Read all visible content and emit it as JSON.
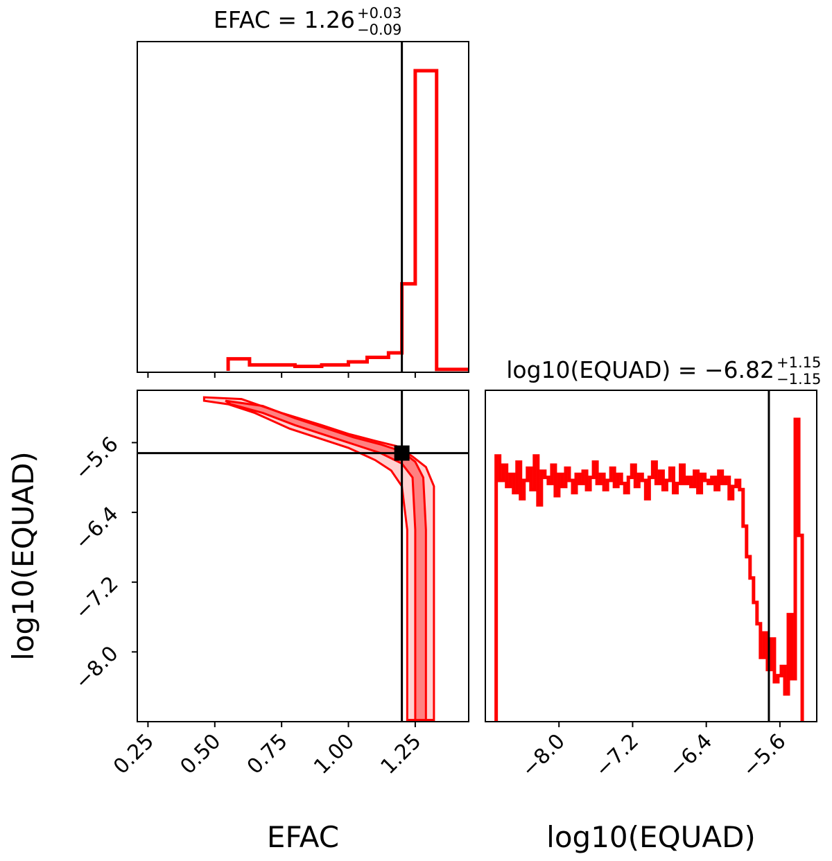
{
  "chart_data": {
    "type": "corner",
    "parameters": [
      {
        "name": "EFAC",
        "title": {
          "main": "EFAC = 1.26",
          "sup": "+0.03",
          "sub": "−0.09"
        },
        "range": [
          0.21,
          1.45
        ],
        "ticks": [
          0.25,
          0.5,
          0.75,
          1.0,
          1.25
        ],
        "tick_labels": [
          "0.25",
          "0.50",
          "0.75",
          "1.00",
          "1.25"
        ],
        "xlabel": "EFAC",
        "truth": 1.2,
        "hist": {
          "edges": [
            0.55,
            0.63,
            0.7,
            0.8,
            0.9,
            1.0,
            1.07,
            1.15,
            1.2,
            1.25,
            1.33,
            1.45
          ],
          "counts": [
            0.04,
            0.02,
            0.02,
            0.015,
            0.02,
            0.03,
            0.045,
            0.06,
            0.29,
            1.0,
            0.005
          ]
        }
      },
      {
        "name": "log10(EQUAD)",
        "title": {
          "main": "log10(EQUAD) = −6.82",
          "sup": "+1.15",
          "sub": "−1.15"
        },
        "range": [
          -8.8,
          -5.2
        ],
        "ticks": [
          -8.0,
          -7.2,
          -6.4,
          -5.6
        ],
        "tick_labels": [
          "−8.0",
          "−7.2",
          "−6.4",
          "−5.6"
        ],
        "xlabel": "log10(EQUAD)",
        "ylabel": "log10(EQUAD)",
        "truth": -5.72,
        "hist": {
          "start": -8.72,
          "end": -5.32,
          "counts": [
            0.0,
            0.88,
            0.8,
            0.85,
            0.78,
            0.82,
            0.76,
            0.86,
            0.74,
            0.8,
            0.84,
            0.77,
            0.88,
            0.72,
            0.83,
            0.81,
            0.79,
            0.85,
            0.75,
            0.82,
            0.78,
            0.84,
            0.8,
            0.76,
            0.82,
            0.79,
            0.83,
            0.77,
            0.81,
            0.86,
            0.79,
            0.82,
            0.77,
            0.8,
            0.84,
            0.78,
            0.82,
            0.79,
            0.76,
            0.81,
            0.85,
            0.78,
            0.82,
            0.8,
            0.74,
            0.81,
            0.86,
            0.79,
            0.83,
            0.77,
            0.8,
            0.84,
            0.76,
            0.79,
            0.85,
            0.79,
            0.81,
            0.78,
            0.83,
            0.76,
            0.82,
            0.8,
            0.79,
            0.81,
            0.77,
            0.83,
            0.79,
            0.81,
            0.74,
            0.78,
            0.8,
            0.77,
            0.65,
            0.55,
            0.48,
            0.4,
            0.33,
            0.22,
            0.3,
            0.18,
            0.28,
            0.14,
            0.16,
            0.19,
            0.1,
            0.36,
            0.15,
            1.0,
            0.62,
            0.0
          ]
        }
      }
    ],
    "joint": {
      "x": "EFAC",
      "y": "log10(EQUAD)",
      "yrange": [
        -8.8,
        -5.0
      ],
      "yticks": [
        -5.6,
        -6.4,
        -7.2,
        -8.0
      ],
      "ytick_labels": [
        "−5.6",
        "−6.4",
        "−7.2",
        "−8.0"
      ],
      "truth_point": [
        1.2,
        -5.72
      ],
      "contour_outer": [
        [
          0.46,
          -5.08
        ],
        [
          0.6,
          -5.1
        ],
        [
          0.75,
          -5.26
        ],
        [
          0.9,
          -5.4
        ],
        [
          1.0,
          -5.5
        ],
        [
          1.1,
          -5.58
        ],
        [
          1.18,
          -5.64
        ],
        [
          1.24,
          -5.76
        ],
        [
          1.29,
          -5.88
        ],
        [
          1.32,
          -6.1
        ],
        [
          1.32,
          -6.6
        ],
        [
          1.32,
          -7.4
        ],
        [
          1.32,
          -8.2
        ],
        [
          1.32,
          -8.78
        ],
        [
          1.22,
          -8.78
        ],
        [
          1.22,
          -8.2
        ],
        [
          1.22,
          -7.4
        ],
        [
          1.22,
          -6.6
        ],
        [
          1.2,
          -6.1
        ],
        [
          1.16,
          -5.92
        ],
        [
          1.1,
          -5.8
        ],
        [
          1.0,
          -5.66
        ],
        [
          0.9,
          -5.56
        ],
        [
          0.78,
          -5.44
        ],
        [
          0.65,
          -5.26
        ],
        [
          0.55,
          -5.16
        ],
        [
          0.46,
          -5.12
        ]
      ],
      "contour_inner": [
        [
          0.54,
          -5.12
        ],
        [
          0.68,
          -5.18
        ],
        [
          0.8,
          -5.32
        ],
        [
          0.92,
          -5.44
        ],
        [
          1.02,
          -5.54
        ],
        [
          1.12,
          -5.62
        ],
        [
          1.2,
          -5.7
        ],
        [
          1.25,
          -5.82
        ],
        [
          1.28,
          -6.0
        ],
        [
          1.29,
          -6.6
        ],
        [
          1.29,
          -7.4
        ],
        [
          1.29,
          -8.78
        ],
        [
          1.25,
          -8.78
        ],
        [
          1.25,
          -7.4
        ],
        [
          1.25,
          -6.6
        ],
        [
          1.24,
          -6.0
        ],
        [
          1.2,
          -5.84
        ],
        [
          1.12,
          -5.72
        ],
        [
          1.02,
          -5.62
        ],
        [
          0.92,
          -5.52
        ],
        [
          0.8,
          -5.4
        ],
        [
          0.68,
          -5.26
        ],
        [
          0.56,
          -5.16
        ]
      ]
    }
  }
}
